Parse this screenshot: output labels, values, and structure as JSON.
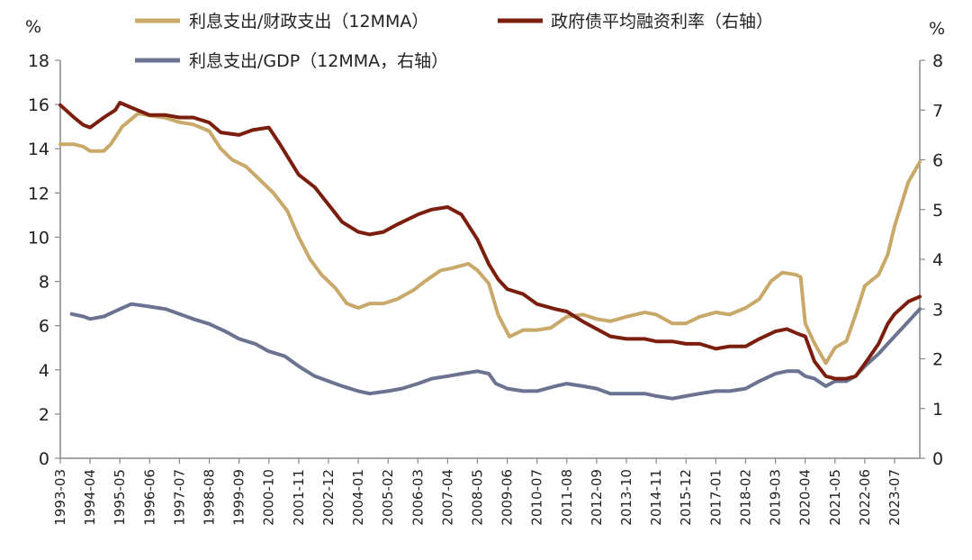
{
  "chart_data": {
    "type": "line",
    "left_unit": "%",
    "right_unit": "%",
    "y_left": {
      "min": 0,
      "max": 18,
      "ticks": [
        "0",
        "2",
        "4",
        "6",
        "8",
        "10",
        "12",
        "14",
        "16",
        "18"
      ]
    },
    "y_right": {
      "min": 0,
      "max": 8,
      "ticks": [
        "0",
        "1",
        "2",
        "3",
        "4",
        "5",
        "6",
        "7",
        "8"
      ]
    },
    "x_range": [
      "1993-03",
      "2024-06"
    ],
    "x_ticks": [
      "1993-03",
      "1994-04",
      "1995-05",
      "1996-06",
      "1997-07",
      "1998-08",
      "1999-09",
      "2000-10",
      "2001-11",
      "2002-12",
      "2004-01",
      "2005-02",
      "2006-03",
      "2007-04",
      "2008-05",
      "2009-06",
      "2010-07",
      "2011-08",
      "2012-09",
      "2013-10",
      "2014-11",
      "2015-12",
      "2017-01",
      "2018-02",
      "2019-03",
      "2020-04",
      "2021-05",
      "2022-06",
      "2023-07"
    ],
    "series": [
      {
        "name": "利息支出/财政支出（12MMA）",
        "axis": "left",
        "color": "#C8A96A",
        "points": [
          [
            "1993-03",
            14.2
          ],
          [
            "1993-09",
            14.2
          ],
          [
            "1994-01",
            14.1
          ],
          [
            "1994-04",
            13.9
          ],
          [
            "1994-10",
            13.9
          ],
          [
            "1995-01",
            14.2
          ],
          [
            "1995-06",
            15.0
          ],
          [
            "1996-01",
            15.6
          ],
          [
            "1996-06",
            15.5
          ],
          [
            "1997-01",
            15.4
          ],
          [
            "1997-07",
            15.2
          ],
          [
            "1998-01",
            15.1
          ],
          [
            "1998-08",
            14.8
          ],
          [
            "1999-01",
            14.0
          ],
          [
            "1999-06",
            13.5
          ],
          [
            "1999-12",
            13.2
          ],
          [
            "2000-06",
            12.6
          ],
          [
            "2000-12",
            12.0
          ],
          [
            "2001-06",
            11.2
          ],
          [
            "2001-11",
            10.0
          ],
          [
            "2002-04",
            9.0
          ],
          [
            "2002-09",
            8.3
          ],
          [
            "2003-03",
            7.7
          ],
          [
            "2003-08",
            7.0
          ],
          [
            "2004-01",
            6.8
          ],
          [
            "2004-06",
            7.0
          ],
          [
            "2004-12",
            7.0
          ],
          [
            "2005-06",
            7.2
          ],
          [
            "2006-01",
            7.6
          ],
          [
            "2006-06",
            8.0
          ],
          [
            "2007-01",
            8.5
          ],
          [
            "2007-06",
            8.6
          ],
          [
            "2008-01",
            8.8
          ],
          [
            "2008-05",
            8.5
          ],
          [
            "2008-10",
            7.9
          ],
          [
            "2009-02",
            6.5
          ],
          [
            "2009-07",
            5.5
          ],
          [
            "2010-01",
            5.8
          ],
          [
            "2010-07",
            5.8
          ],
          [
            "2011-01",
            5.9
          ],
          [
            "2011-08",
            6.4
          ],
          [
            "2012-03",
            6.5
          ],
          [
            "2012-09",
            6.3
          ],
          [
            "2013-03",
            6.2
          ],
          [
            "2013-10",
            6.4
          ],
          [
            "2014-06",
            6.6
          ],
          [
            "2014-11",
            6.5
          ],
          [
            "2015-06",
            6.1
          ],
          [
            "2015-12",
            6.1
          ],
          [
            "2016-06",
            6.4
          ],
          [
            "2017-01",
            6.6
          ],
          [
            "2017-07",
            6.5
          ],
          [
            "2018-02",
            6.8
          ],
          [
            "2018-08",
            7.2
          ],
          [
            "2019-01",
            8.0
          ],
          [
            "2019-06",
            8.4
          ],
          [
            "2019-12",
            8.3
          ],
          [
            "2020-02",
            8.2
          ],
          [
            "2020-04",
            6.1
          ],
          [
            "2020-08",
            5.2
          ],
          [
            "2021-01",
            4.3
          ],
          [
            "2021-05",
            5.0
          ],
          [
            "2021-10",
            5.3
          ],
          [
            "2022-02",
            6.5
          ],
          [
            "2022-06",
            7.8
          ],
          [
            "2022-12",
            8.3
          ],
          [
            "2023-04",
            9.2
          ],
          [
            "2023-07",
            10.5
          ],
          [
            "2024-01",
            12.5
          ],
          [
            "2024-06",
            13.4
          ]
        ]
      },
      {
        "name": "政府债平均融资利率（右轴",
        "axis": "right",
        "color": "#7B1E0E",
        "points": [
          [
            "1993-03",
            7.1
          ],
          [
            "1993-09",
            6.85
          ],
          [
            "1994-01",
            6.7
          ],
          [
            "1994-04",
            6.65
          ],
          [
            "1994-10",
            6.85
          ],
          [
            "1995-03",
            7.0
          ],
          [
            "1995-05",
            7.15
          ],
          [
            "1995-10",
            7.05
          ],
          [
            "1996-06",
            6.9
          ],
          [
            "1997-01",
            6.9
          ],
          [
            "1997-07",
            6.85
          ],
          [
            "1998-01",
            6.85
          ],
          [
            "1998-08",
            6.75
          ],
          [
            "1999-01",
            6.55
          ],
          [
            "1999-09",
            6.5
          ],
          [
            "2000-03",
            6.6
          ],
          [
            "2000-10",
            6.65
          ],
          [
            "2001-03",
            6.3
          ],
          [
            "2001-11",
            5.7
          ],
          [
            "2002-06",
            5.45
          ],
          [
            "2002-12",
            5.1
          ],
          [
            "2003-06",
            4.75
          ],
          [
            "2004-01",
            4.55
          ],
          [
            "2004-06",
            4.5
          ],
          [
            "2004-12",
            4.55
          ],
          [
            "2005-06",
            4.7
          ],
          [
            "2006-03",
            4.9
          ],
          [
            "2006-09",
            5.0
          ],
          [
            "2007-04",
            5.05
          ],
          [
            "2007-10",
            4.9
          ],
          [
            "2008-05",
            4.4
          ],
          [
            "2008-10",
            3.9
          ],
          [
            "2009-02",
            3.6
          ],
          [
            "2009-06",
            3.4
          ],
          [
            "2010-01",
            3.3
          ],
          [
            "2010-07",
            3.1
          ],
          [
            "2011-03",
            3.0
          ],
          [
            "2011-08",
            2.95
          ],
          [
            "2012-03",
            2.75
          ],
          [
            "2012-09",
            2.6
          ],
          [
            "2013-03",
            2.45
          ],
          [
            "2013-10",
            2.4
          ],
          [
            "2014-06",
            2.4
          ],
          [
            "2014-11",
            2.35
          ],
          [
            "2015-06",
            2.35
          ],
          [
            "2015-12",
            2.3
          ],
          [
            "2016-06",
            2.3
          ],
          [
            "2017-01",
            2.2
          ],
          [
            "2017-07",
            2.25
          ],
          [
            "2018-02",
            2.25
          ],
          [
            "2018-08",
            2.4
          ],
          [
            "2019-03",
            2.55
          ],
          [
            "2019-08",
            2.6
          ],
          [
            "2020-01",
            2.5
          ],
          [
            "2020-04",
            2.45
          ],
          [
            "2020-08",
            1.95
          ],
          [
            "2021-01",
            1.65
          ],
          [
            "2021-05",
            1.6
          ],
          [
            "2021-10",
            1.6
          ],
          [
            "2022-02",
            1.65
          ],
          [
            "2022-06",
            1.9
          ],
          [
            "2022-12",
            2.3
          ],
          [
            "2023-04",
            2.7
          ],
          [
            "2023-07",
            2.9
          ],
          [
            "2024-01",
            3.15
          ],
          [
            "2024-06",
            3.25
          ]
        ]
      },
      {
        "name": "利息支出/GDP（12MMA，右轴）",
        "axis": "right",
        "color": "#6B7390",
        "points": [
          [
            "1993-08",
            2.9
          ],
          [
            "1994-01",
            2.85
          ],
          [
            "1994-04",
            2.8
          ],
          [
            "1994-10",
            2.85
          ],
          [
            "1995-05",
            3.0
          ],
          [
            "1995-10",
            3.1
          ],
          [
            "1996-06",
            3.05
          ],
          [
            "1997-01",
            3.0
          ],
          [
            "1997-07",
            2.9
          ],
          [
            "1998-01",
            2.8
          ],
          [
            "1998-08",
            2.7
          ],
          [
            "1999-03",
            2.55
          ],
          [
            "1999-09",
            2.4
          ],
          [
            "2000-04",
            2.3
          ],
          [
            "2000-10",
            2.15
          ],
          [
            "2001-05",
            2.05
          ],
          [
            "2001-11",
            1.85
          ],
          [
            "2002-06",
            1.65
          ],
          [
            "2002-12",
            1.55
          ],
          [
            "2003-06",
            1.45
          ],
          [
            "2004-01",
            1.35
          ],
          [
            "2004-06",
            1.3
          ],
          [
            "2005-02",
            1.35
          ],
          [
            "2005-08",
            1.4
          ],
          [
            "2006-03",
            1.5
          ],
          [
            "2006-09",
            1.6
          ],
          [
            "2007-04",
            1.65
          ],
          [
            "2007-10",
            1.7
          ],
          [
            "2008-05",
            1.75
          ],
          [
            "2008-10",
            1.7
          ],
          [
            "2009-01",
            1.5
          ],
          [
            "2009-06",
            1.4
          ],
          [
            "2010-01",
            1.35
          ],
          [
            "2010-07",
            1.35
          ],
          [
            "2011-03",
            1.45
          ],
          [
            "2011-08",
            1.5
          ],
          [
            "2012-03",
            1.45
          ],
          [
            "2012-09",
            1.4
          ],
          [
            "2013-03",
            1.3
          ],
          [
            "2013-10",
            1.3
          ],
          [
            "2014-06",
            1.3
          ],
          [
            "2014-11",
            1.25
          ],
          [
            "2015-06",
            1.2
          ],
          [
            "2015-12",
            1.25
          ],
          [
            "2016-06",
            1.3
          ],
          [
            "2017-01",
            1.35
          ],
          [
            "2017-07",
            1.35
          ],
          [
            "2018-02",
            1.4
          ],
          [
            "2018-08",
            1.55
          ],
          [
            "2019-03",
            1.7
          ],
          [
            "2019-08",
            1.75
          ],
          [
            "2020-01",
            1.75
          ],
          [
            "2020-04",
            1.65
          ],
          [
            "2020-08",
            1.6
          ],
          [
            "2021-01",
            1.45
          ],
          [
            "2021-05",
            1.55
          ],
          [
            "2021-10",
            1.55
          ],
          [
            "2022-02",
            1.65
          ],
          [
            "2022-06",
            1.85
          ],
          [
            "2022-12",
            2.1
          ],
          [
            "2023-04",
            2.3
          ],
          [
            "2023-07",
            2.45
          ],
          [
            "2024-01",
            2.75
          ],
          [
            "2024-06",
            3.0
          ]
        ]
      }
    ],
    "legend": [
      {
        "label": "利息支出/财政支出（12MMA）",
        "color": "#C8A96A"
      },
      {
        "label": "政府债平均融资利率（右轴）",
        "color": "#7B1E0E"
      },
      {
        "label": "利息支出/GDP（12MMA，右轴）",
        "color": "#6B7390"
      }
    ]
  }
}
